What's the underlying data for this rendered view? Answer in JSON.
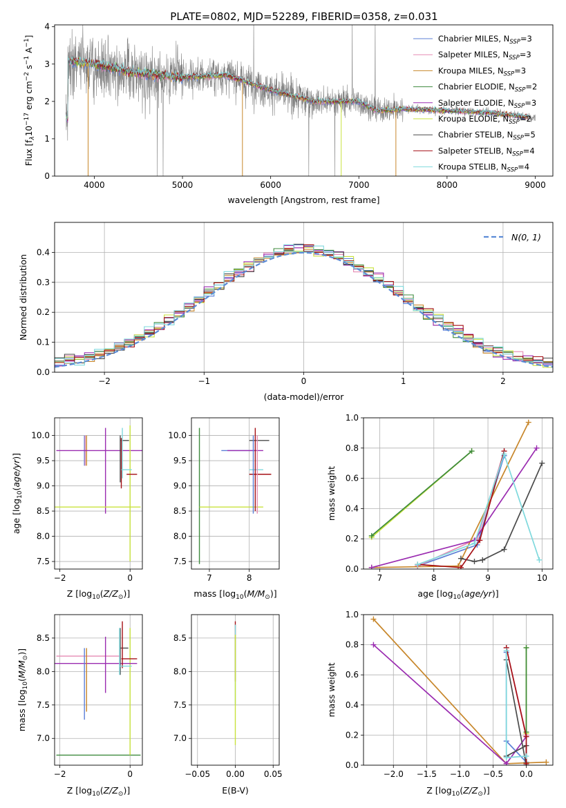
{
  "figure_title": "PLATE=0802, MJD=52289, FIBERID=0358, z=0.031",
  "series_colors": [
    "#5b7fd6",
    "#e58ab3",
    "#c7862a",
    "#3d8a3d",
    "#9a2bb0",
    "#c8e23c",
    "#4a4a4a",
    "#a50f15",
    "#7fd9dd"
  ],
  "chart_data": [
    {
      "id": "spectrum",
      "type": "line",
      "title": "PLATE=0802, MJD=52289, FIBERID=0358, z=0.031",
      "xlabel": "wavelength [Angstrom, rest frame]",
      "ylabel": "Flux [f$_\\lambda$10$^{-17}$ erg cm$^{-2}$ s$^{-1}$ A$^{-1}$]",
      "xlim": [
        3550,
        9200
      ],
      "ylim": [
        0,
        4.05
      ],
      "xticks": [
        4000,
        5000,
        6000,
        7000,
        8000,
        9000
      ],
      "yticks": [
        0,
        1,
        2,
        3,
        4
      ],
      "grid": false,
      "legend": "top-right",
      "data_color": "#808080",
      "data_range": [
        3680,
        9000
      ],
      "model_range": [
        3680,
        8920
      ],
      "continuum": [
        [
          3700,
          3.1
        ],
        [
          4000,
          3.0
        ],
        [
          4500,
          2.75
        ],
        [
          5000,
          2.65
        ],
        [
          5500,
          2.7
        ],
        [
          6000,
          2.3
        ],
        [
          6500,
          2.0
        ],
        [
          7000,
          2.0
        ],
        [
          7200,
          1.75
        ],
        [
          7500,
          1.8
        ],
        [
          8000,
          1.75
        ],
        [
          8500,
          1.7
        ],
        [
          9000,
          1.55
        ]
      ],
      "legend_entries": [
        {
          "name": "Chabrier MILES, N_SSP=3",
          "base": "Chabrier MILES, N",
          "sub": "SSP",
          "tail": "=3"
        },
        {
          "name": "Salpeter MILES, N_SSP=3",
          "base": "Salpeter MILES, N",
          "sub": "SSP",
          "tail": "=3"
        },
        {
          "name": "Kroupa MILES, N_SSP=3",
          "base": "Kroupa MILES, N",
          "sub": "SSP",
          "tail": "=3"
        },
        {
          "name": "Chabrier ELODIE, N_SSP=2",
          "base": "Chabrier ELODIE, N",
          "sub": "SSP",
          "tail": "=2"
        },
        {
          "name": "Salpeter ELODIE, N_SSP=3",
          "base": "Salpeter ELODIE, N",
          "sub": "SSP",
          "tail": "=3"
        },
        {
          "name": "Kroupa ELODIE, N_SSP=2",
          "base": "Kroupa ELODIE, N",
          "sub": "SSP",
          "tail": "=2"
        },
        {
          "name": "Chabrier STELIB, N_SSP=5",
          "base": "Chabrier STELIB, N",
          "sub": "SSP",
          "tail": "=5"
        },
        {
          "name": "Salpeter STELIB, N_SSP=4",
          "base": "Salpeter STELIB, N",
          "sub": "SSP",
          "tail": "=4"
        },
        {
          "name": "Kroupa STELIB, N_SSP=4",
          "base": "Kroupa STELIB, N",
          "sub": "SSP",
          "tail": "=4"
        }
      ]
    },
    {
      "id": "residuals",
      "type": "line",
      "xlabel": "(data-model)/error",
      "ylabel": "Normed distribution",
      "xlim": [
        -2.5,
        2.5
      ],
      "ylim": [
        0,
        0.5
      ],
      "xticks": [
        -2,
        -1,
        0,
        1,
        2
      ],
      "xtick_labels": [
        "−2",
        "−1",
        "0",
        "1",
        "2"
      ],
      "yticks": [
        0.0,
        0.1,
        0.2,
        0.3,
        0.4
      ],
      "grid": true,
      "legend": "top-right",
      "legend_label": "N(0, 1)",
      "bin_width": 0.1
    },
    {
      "id": "age_vs_Z",
      "type": "scatter",
      "xlabel": "Z [log10(Z/Z☉)]",
      "ylabel": "age  [log10(age/yr)]",
      "xlim": [
        -2.15,
        0.35
      ],
      "ylim": [
        7.35,
        10.35
      ],
      "xticks": [
        -2,
        0
      ],
      "xtick_labels": [
        "−2",
        "0"
      ],
      "yticks": [
        7.5,
        8.0,
        8.5,
        9.0,
        9.5,
        10.0
      ],
      "grid": true,
      "errorbars": [
        {
          "series": 0,
          "x": -1.3,
          "xerr": [
            0.02,
            0.02
          ],
          "y": 9.7,
          "yerr": [
            0.3,
            0.3
          ]
        },
        {
          "series": 1,
          "x": -1.28,
          "xerr": [
            0.02,
            0.02
          ],
          "y": 9.7,
          "yerr": [
            0.3,
            0.3
          ]
        },
        {
          "series": 2,
          "x": -1.24,
          "xerr": [
            0.02,
            0.02
          ],
          "y": 9.7,
          "yerr": [
            0.3,
            0.3
          ]
        },
        {
          "series": 4,
          "x": -0.7,
          "xerr": [
            1.4,
            1.7
          ],
          "y": 9.7,
          "yerr": [
            0.0,
            0.0
          ]
        },
        {
          "series": 4,
          "x": -0.7,
          "xerr": [
            0.01,
            0.01
          ],
          "y": 9.3,
          "yerr": [
            0.85,
            0.85
          ]
        },
        {
          "series": 5,
          "x": -0.95,
          "xerr": [
            1.2,
            1.25
          ],
          "y": 8.58,
          "yerr": [
            0.0,
            0.0
          ]
        },
        {
          "series": 5,
          "x": 0.0,
          "xerr": [
            0.01,
            0.01
          ],
          "y": 9.0,
          "yerr": [
            1.5,
            1.2
          ]
        },
        {
          "series": 6,
          "x": -0.15,
          "xerr": [
            0.12,
            0.12
          ],
          "y": 9.9,
          "yerr": [
            0.0,
            0.0
          ]
        },
        {
          "series": 6,
          "x": -0.28,
          "xerr": [
            0.01,
            0.01
          ],
          "y": 9.55,
          "yerr": [
            0.48,
            0.45
          ]
        },
        {
          "series": 7,
          "x": 0.05,
          "xerr": [
            0.15,
            0.15
          ],
          "y": 9.23,
          "yerr": [
            0.0,
            0.0
          ]
        },
        {
          "series": 7,
          "x": -0.25,
          "xerr": [
            0.01,
            0.01
          ],
          "y": 9.45,
          "yerr": [
            0.5,
            0.5
          ]
        },
        {
          "series": 8,
          "x": -0.05,
          "xerr": [
            0.2,
            0.1
          ],
          "y": 9.32,
          "yerr": [
            0.0,
            0.0
          ]
        },
        {
          "series": 8,
          "x": -0.22,
          "xerr": [
            0.01,
            0.01
          ],
          "y": 9.65,
          "yerr": [
            0.5,
            0.5
          ]
        }
      ]
    },
    {
      "id": "age_vs_mass",
      "type": "scatter",
      "xlabel": "mass [log10(M/M☉)]",
      "ylabel": "",
      "xlim": [
        6.55,
        8.75
      ],
      "ylim": [
        7.35,
        10.35
      ],
      "xticks": [
        7,
        8
      ],
      "yticks": [
        7.5,
        8.0,
        8.5,
        9.0,
        9.5,
        10.0
      ],
      "grid": true,
      "errorbars": [
        {
          "series": 3,
          "x": 6.75,
          "xerr": [
            0.0,
            0.0
          ],
          "y": 8.8,
          "yerr": [
            1.35,
            1.35
          ]
        },
        {
          "series": 5,
          "x": 7.4,
          "xerr": [
            0.65,
            0.95
          ],
          "y": 8.58,
          "yerr": [
            0.0,
            0.0
          ]
        },
        {
          "series": 0,
          "x": 7.85,
          "xerr": [
            0.55,
            0.3
          ],
          "y": 9.7,
          "yerr": [
            0.0,
            0.0
          ]
        },
        {
          "series": 4,
          "x": 8.05,
          "xerr": [
            0.6,
            0.3
          ],
          "y": 9.7,
          "yerr": [
            0.0,
            0.0
          ]
        },
        {
          "series": 6,
          "x": 8.2,
          "xerr": [
            0.2,
            0.3
          ],
          "y": 9.9,
          "yerr": [
            0.0,
            0.0
          ]
        },
        {
          "series": 7,
          "x": 8.2,
          "xerr": [
            0.2,
            0.35
          ],
          "y": 9.23,
          "yerr": [
            0.0,
            0.0
          ]
        },
        {
          "series": 8,
          "x": 8.15,
          "xerr": [
            0.15,
            0.2
          ],
          "y": 9.32,
          "yerr": [
            0.0,
            0.0
          ]
        },
        {
          "series": 0,
          "x": 8.1,
          "xerr": [
            0.01,
            0.01
          ],
          "y": 9.3,
          "yerr": [
            0.85,
            0.7
          ]
        },
        {
          "series": 1,
          "x": 8.2,
          "xerr": [
            0.01,
            0.01
          ],
          "y": 9.3,
          "yerr": [
            0.85,
            0.7
          ]
        },
        {
          "series": 7,
          "x": 8.15,
          "xerr": [
            0.01,
            0.01
          ],
          "y": 9.4,
          "yerr": [
            0.9,
            0.75
          ]
        }
      ]
    },
    {
      "id": "weight_vs_age",
      "type": "line",
      "xlabel": "age  [log10(age/yr)]",
      "ylabel": "mass weight",
      "xlim": [
        6.7,
        10.2
      ],
      "ylim": [
        0,
        1.0
      ],
      "xticks": [
        7,
        8,
        9,
        10
      ],
      "yticks": [
        0.0,
        0.2,
        0.4,
        0.6,
        0.8,
        1.0
      ],
      "grid": true,
      "series": [
        {
          "series": 0,
          "x": [
            7.7,
            8.8,
            9.3
          ],
          "y": [
            0.02,
            0.16,
            0.75
          ]
        },
        {
          "series": 1,
          "x": [
            7.7,
            8.8,
            9.3
          ],
          "y": [
            0.02,
            0.2,
            0.78
          ]
        },
        {
          "series": 2,
          "x": [
            6.85,
            8.45,
            9.75
          ],
          "y": [
            0.01,
            0.02,
            0.97
          ]
        },
        {
          "series": 4,
          "x": [
            6.85,
            8.75,
            9.9
          ],
          "y": [
            0.01,
            0.19,
            0.8
          ]
        },
        {
          "series": 5,
          "x": [
            6.85,
            8.7
          ],
          "y": [
            0.21,
            0.78
          ]
        },
        {
          "series": 3,
          "x": [
            6.85,
            8.7
          ],
          "y": [
            0.22,
            0.78
          ]
        },
        {
          "series": 6,
          "x": [
            8.5,
            8.75,
            8.9,
            9.3,
            10.0
          ],
          "y": [
            0.07,
            0.05,
            0.06,
            0.13,
            0.7
          ]
        },
        {
          "series": 7,
          "x": [
            7.7,
            8.5,
            8.85,
            9.3
          ],
          "y": [
            0.03,
            0.01,
            0.19,
            0.78
          ]
        },
        {
          "series": 8,
          "x": [
            7.7,
            8.75,
            9.3,
            9.95
          ],
          "y": [
            0.03,
            0.17,
            0.76,
            0.06
          ]
        }
      ]
    },
    {
      "id": "mass_vs_Z",
      "type": "scatter",
      "xlabel": "Z [log10(Z/Z☉)]",
      "ylabel": "mass [log10(M/M☉)]",
      "xlim": [
        -2.15,
        0.35
      ],
      "ylim": [
        6.6,
        8.85
      ],
      "xticks": [
        -2,
        0
      ],
      "xtick_labels": [
        "−2",
        "0"
      ],
      "yticks": [
        7.0,
        7.5,
        8.0,
        8.5
      ],
      "grid": true,
      "errorbars": [
        {
          "series": 3,
          "x": -0.95,
          "xerr": [
            1.15,
            1.25
          ],
          "y": 6.75,
          "yerr": [
            0.0,
            0.0
          ]
        },
        {
          "series": 5,
          "x": 0.0,
          "xerr": [
            0.01,
            0.01
          ],
          "y": 7.7,
          "yerr": [
            0.95,
            0.95
          ]
        },
        {
          "series": 1,
          "x": -1.15,
          "xerr": [
            0.95,
            0.85
          ],
          "y": 8.23,
          "yerr": [
            0.0,
            0.0
          ]
        },
        {
          "series": 4,
          "x": -0.9,
          "xerr": [
            1.25,
            1.1
          ],
          "y": 8.12,
          "yerr": [
            0.0,
            0.0
          ]
        },
        {
          "series": 0,
          "x": -1.3,
          "xerr": [
            0.01,
            0.01
          ],
          "y": 7.8,
          "yerr": [
            0.52,
            0.55
          ]
        },
        {
          "series": 2,
          "x": -1.24,
          "xerr": [
            0.01,
            0.01
          ],
          "y": 7.8,
          "yerr": [
            0.4,
            0.55
          ]
        },
        {
          "series": 4,
          "x": -0.7,
          "xerr": [
            0.01,
            0.01
          ],
          "y": 8.1,
          "yerr": [
            0.42,
            0.42
          ]
        },
        {
          "series": 6,
          "x": -0.15,
          "xerr": [
            0.12,
            0.1
          ],
          "y": 8.35,
          "yerr": [
            0.0,
            0.0
          ]
        },
        {
          "series": 6,
          "x": -0.28,
          "xerr": [
            0.01,
            0.01
          ],
          "y": 8.3,
          "yerr": [
            0.35,
            0.35
          ]
        },
        {
          "series": 7,
          "x": 0.0,
          "xerr": [
            0.25,
            0.2
          ],
          "y": 8.19,
          "yerr": [
            0.0,
            0.0
          ]
        },
        {
          "series": 7,
          "x": -0.22,
          "xerr": [
            0.01,
            0.01
          ],
          "y": 8.4,
          "yerr": [
            0.35,
            0.35
          ]
        },
        {
          "series": 8,
          "x": -0.1,
          "xerr": [
            0.2,
            0.15
          ],
          "y": 8.08,
          "yerr": [
            0.0,
            0.0
          ]
        },
        {
          "series": 8,
          "x": -0.3,
          "xerr": [
            0.01,
            0.01
          ],
          "y": 8.3,
          "yerr": [
            0.35,
            0.35
          ]
        }
      ]
    },
    {
      "id": "mass_vs_EBV",
      "type": "scatter",
      "xlabel": "E(B-V)",
      "ylabel": "",
      "xlim": [
        -0.058,
        0.058
      ],
      "ylim": [
        6.6,
        8.85
      ],
      "xticks": [
        -0.05,
        0.0,
        0.05
      ],
      "xtick_labels": [
        "−0.05",
        "0.00",
        "0.05"
      ],
      "yticks": [
        7.0,
        7.5,
        8.0,
        8.5
      ],
      "grid": true,
      "errorbars": [
        {
          "series": 7,
          "x": 0.0,
          "xerr": [
            0.0,
            0.0
          ],
          "y": 8.3,
          "yerr": [
            0.45,
            0.45
          ]
        },
        {
          "series": 8,
          "x": 0.0,
          "xerr": [
            0.0,
            0.0
          ],
          "y": 8.1,
          "yerr": [
            0.6,
            0.6
          ]
        },
        {
          "series": 5,
          "x": 0.0,
          "xerr": [
            0.0,
            0.0
          ],
          "y": 7.6,
          "yerr": [
            0.7,
            0.95
          ]
        }
      ]
    },
    {
      "id": "weight_vs_Z",
      "type": "line",
      "xlabel": "Z [log10(Z/Z☉)]",
      "ylabel": "mass weight",
      "xlim": [
        -2.45,
        0.4
      ],
      "ylim": [
        0,
        1.0
      ],
      "xticks": [
        -2.0,
        -1.5,
        -1.0,
        -0.5,
        0.0
      ],
      "xtick_labels": [
        "−2.0",
        "−1.5",
        "−1.0",
        "−0.5",
        "0.0"
      ],
      "yticks": [
        0.0,
        0.2,
        0.4,
        0.6,
        0.8,
        1.0
      ],
      "grid": true,
      "series": [
        {
          "series": 0,
          "x": [
            -0.3,
            -0.3,
            0.0
          ],
          "y": [
            0.75,
            0.16,
            0.02
          ]
        },
        {
          "series": 1,
          "x": [
            -0.3,
            0.0
          ],
          "y": [
            0.78,
            0.2
          ]
        },
        {
          "series": 2,
          "x": [
            -2.3,
            -0.3,
            0.3
          ],
          "y": [
            0.97,
            0.01,
            0.02
          ]
        },
        {
          "series": 4,
          "x": [
            -2.3,
            -0.3,
            0.0
          ],
          "y": [
            0.8,
            0.01,
            0.19
          ]
        },
        {
          "series": 5,
          "x": [
            0.0,
            0.0
          ],
          "y": [
            0.78,
            0.21
          ]
        },
        {
          "series": 3,
          "x": [
            0.0,
            0.0
          ],
          "y": [
            0.78,
            0.22
          ]
        },
        {
          "series": 6,
          "x": [
            -0.3,
            0.0,
            0.0,
            -0.3
          ],
          "y": [
            0.7,
            0.0,
            0.13,
            0.06
          ]
        },
        {
          "series": 7,
          "x": [
            -0.3,
            0.0,
            0.0
          ],
          "y": [
            0.78,
            0.19,
            0.01
          ]
        },
        {
          "series": 8,
          "x": [
            -0.3,
            -0.3,
            0.0
          ],
          "y": [
            0.76,
            0.05,
            0.06
          ]
        }
      ]
    }
  ]
}
